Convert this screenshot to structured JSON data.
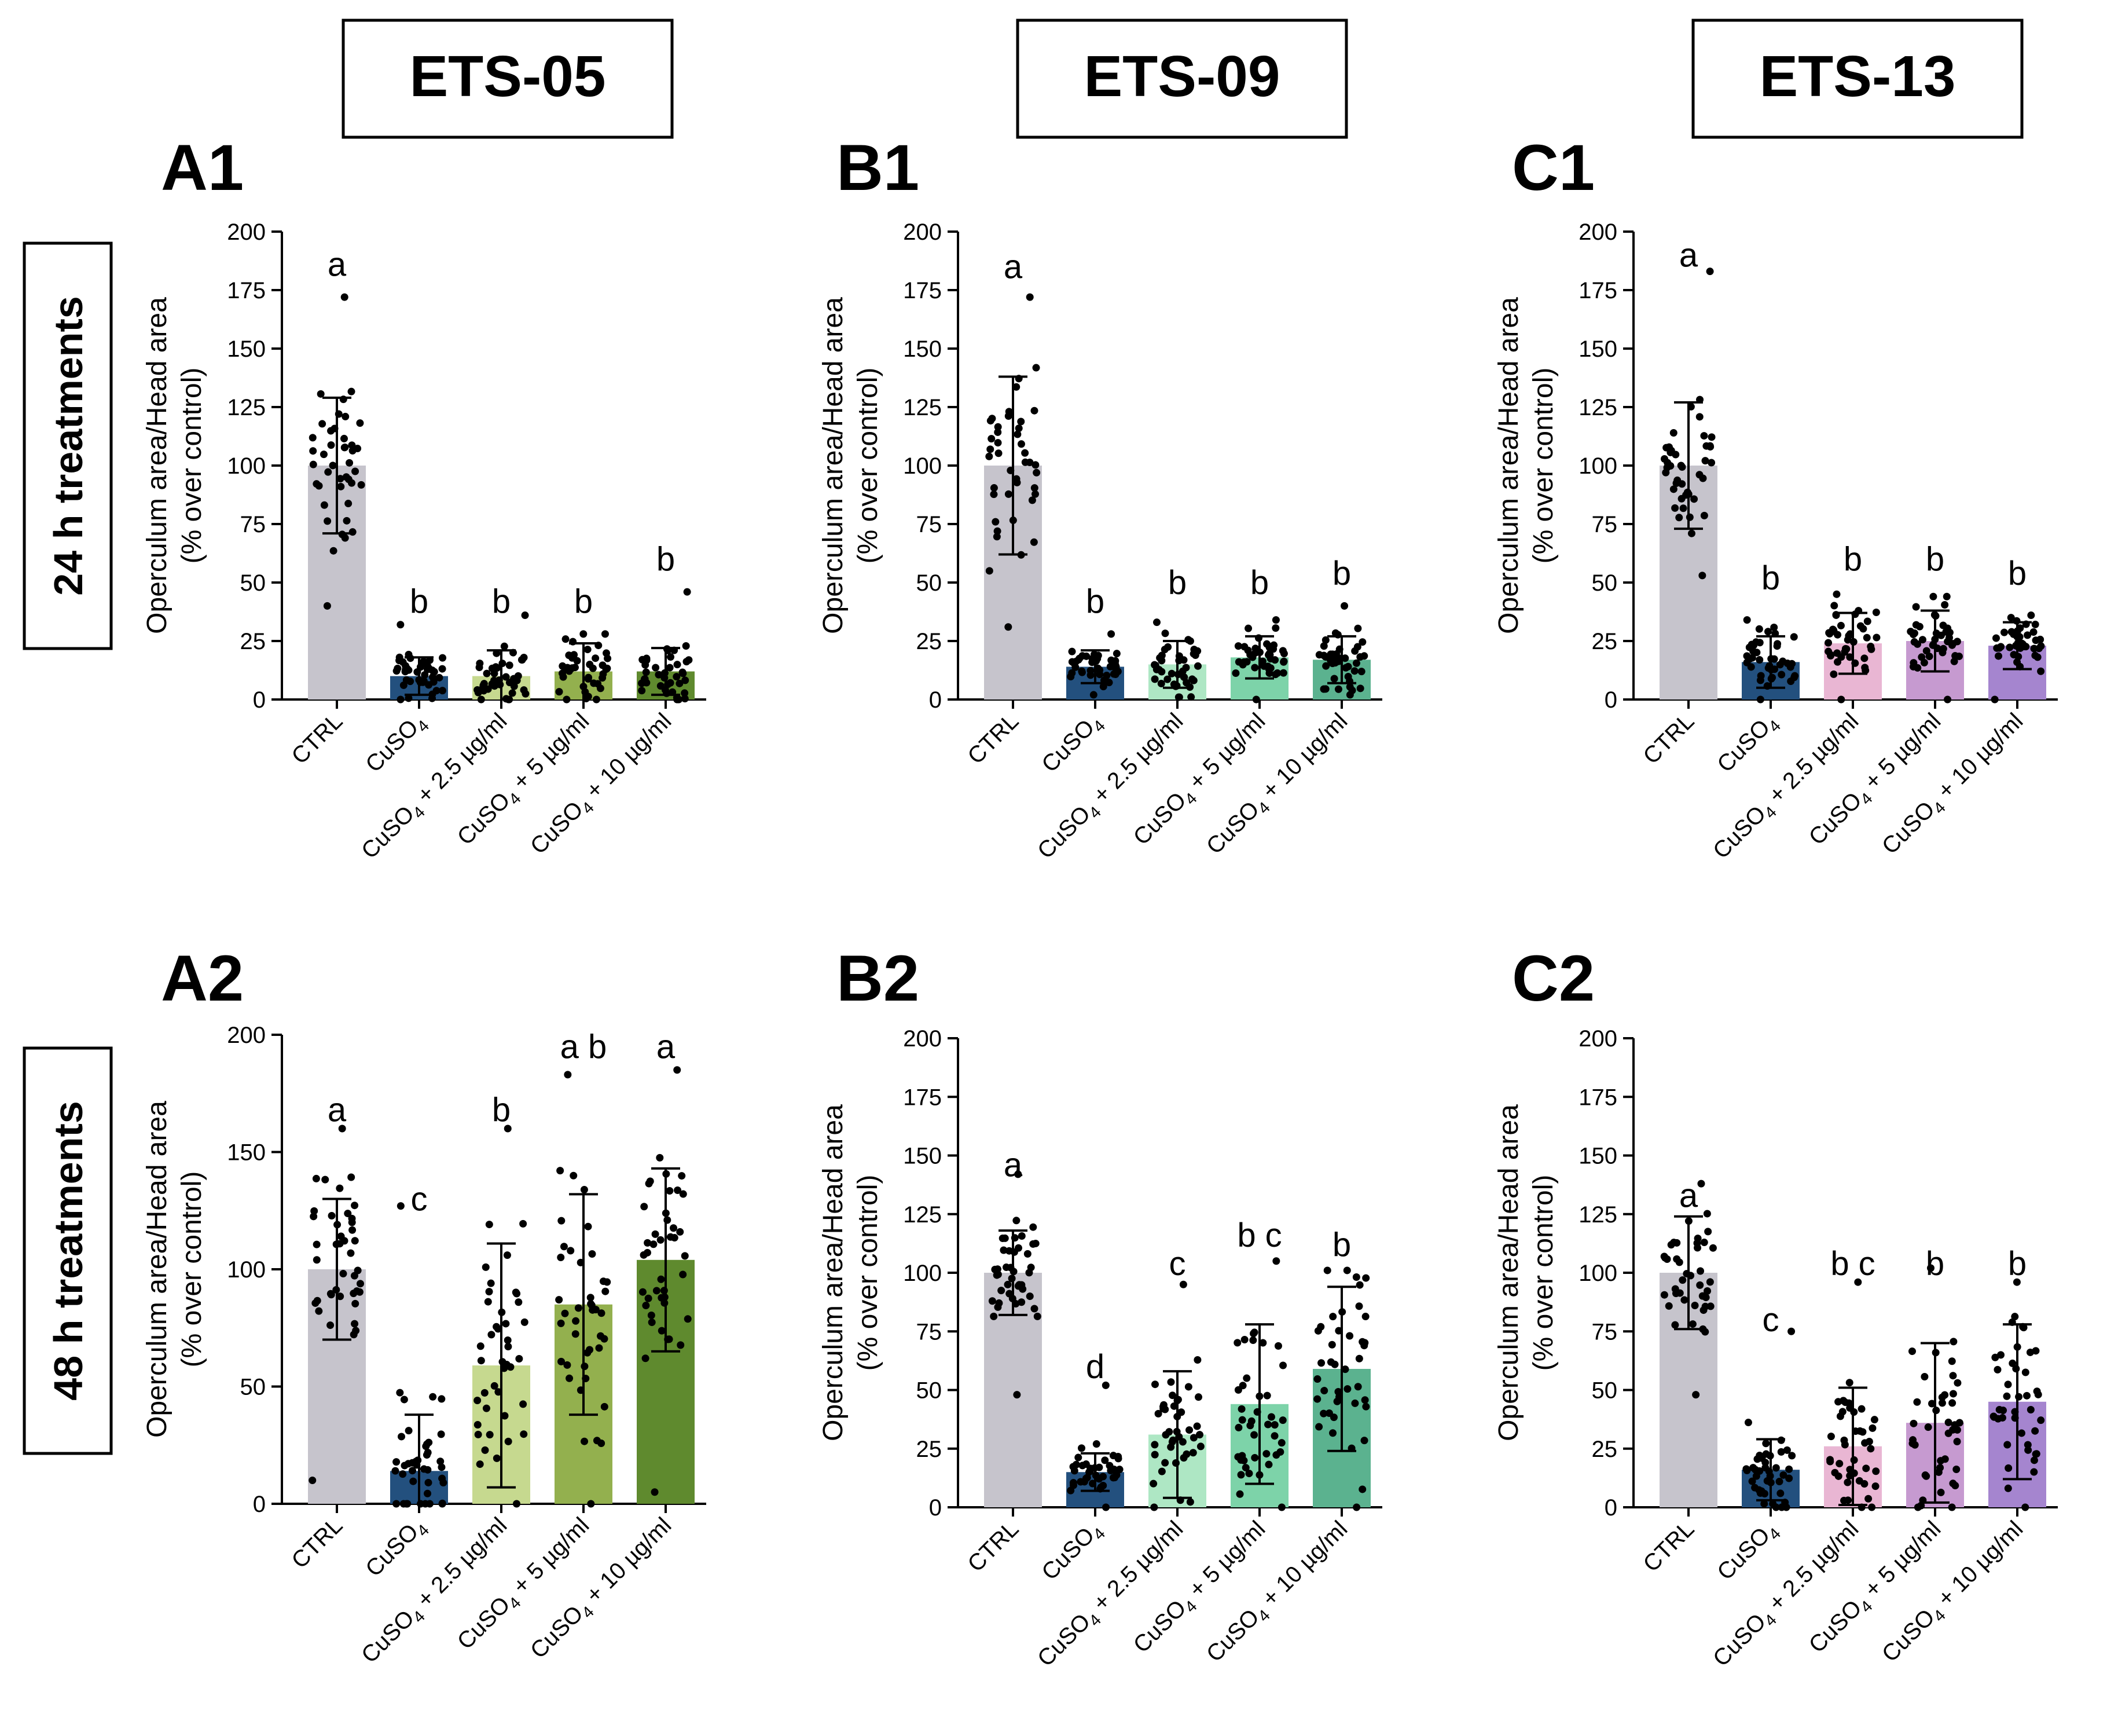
{
  "column_headers": [
    "ETS-05",
    "ETS-09",
    "ETS-13"
  ],
  "row_labels": [
    "24 h treatments",
    "48 h treatments"
  ],
  "axis": {
    "ylabel_line1": "Operculum area/Head area",
    "ylabel_line2": "(% over control)"
  },
  "colors": {
    "ctrl": "#c6c4cc",
    "cuso4": "#23507e",
    "ets05": [
      "#c6d98f",
      "#93b04e",
      "#5f8a2e"
    ],
    "ets09": [
      "#aee7c4",
      "#7dd3a9",
      "#5bb28f"
    ],
    "ets13": [
      "#e9b6d3",
      "#c69ad0",
      "#a585cf"
    ],
    "text": "#000000"
  },
  "chart_data": [
    {
      "type": "bar",
      "panel": "A1",
      "column": 0,
      "row": 0,
      "ylim": [
        0,
        200
      ],
      "yticks": [
        0,
        25,
        50,
        75,
        100,
        125,
        150,
        175,
        200
      ],
      "categories": [
        "CTRL",
        "CuSO4",
        "CuSO4 + 2.5 µg/ml",
        "CuSO4 + 5 µg/ml",
        "CuSO4 + 10 µg/ml"
      ],
      "values": [
        100,
        10,
        10,
        12,
        12
      ],
      "sd": [
        29,
        8,
        11,
        12,
        10
      ],
      "letters": [
        "a",
        "b",
        "b",
        "b",
        "b"
      ],
      "letter_y": [
        186,
        42,
        42,
        42,
        60
      ],
      "point_ranges": [
        [
          40,
          172
        ],
        [
          0,
          32
        ],
        [
          0,
          36
        ],
        [
          0,
          28
        ],
        [
          0,
          46
        ]
      ]
    },
    {
      "type": "bar",
      "panel": "B1",
      "column": 1,
      "row": 0,
      "ylim": [
        0,
        200
      ],
      "yticks": [
        0,
        25,
        50,
        75,
        100,
        125,
        150,
        175,
        200
      ],
      "categories": [
        "CTRL",
        "CuSO4",
        "CuSO4 + 2.5 µg/ml",
        "CuSO4 + 5 µg/ml",
        "CuSO4 + 10 µg/ml"
      ],
      "values": [
        100,
        14,
        15,
        18,
        17
      ],
      "sd": [
        38,
        7,
        10,
        9,
        10
      ],
      "letters": [
        "a",
        "b",
        "b",
        "b",
        "b"
      ],
      "letter_y": [
        185,
        42,
        50,
        50,
        54
      ],
      "point_ranges": [
        [
          31,
          172
        ],
        [
          2,
          28
        ],
        [
          1,
          33
        ],
        [
          0,
          34
        ],
        [
          2,
          40
        ]
      ]
    },
    {
      "type": "bar",
      "panel": "C1",
      "column": 2,
      "row": 0,
      "ylim": [
        0,
        200
      ],
      "yticks": [
        0,
        25,
        50,
        75,
        100,
        125,
        150,
        175,
        200
      ],
      "categories": [
        "CTRL",
        "CuSO4",
        "CuSO4 + 2.5 µg/ml",
        "CuSO4 + 5 µg/ml",
        "CuSO4 + 10 µg/ml"
      ],
      "values": [
        100,
        16,
        24,
        25,
        23
      ],
      "sd": [
        27,
        11,
        13,
        13,
        10
      ],
      "letters": [
        "a",
        "b",
        "b",
        "b",
        "b"
      ],
      "letter_y": [
        190,
        52,
        60,
        60,
        54
      ],
      "point_ranges": [
        [
          53,
          183
        ],
        [
          0,
          34
        ],
        [
          0,
          45
        ],
        [
          0,
          44
        ],
        [
          0,
          36
        ]
      ]
    },
    {
      "type": "bar",
      "panel": "A2",
      "column": 0,
      "row": 1,
      "ylim": [
        0,
        200
      ],
      "yticks": [
        0,
        50,
        100,
        150,
        200
      ],
      "categories": [
        "CTRL",
        "CuSO4",
        "CuSO4 + 2.5 µg/ml",
        "CuSO4 + 5 µg/ml",
        "CuSO4 + 10 µg/ml"
      ],
      "values": [
        100,
        14,
        59,
        85,
        104
      ],
      "sd": [
        30,
        24,
        52,
        47,
        39
      ],
      "letters": [
        "a",
        "c",
        "b",
        "a b",
        "a"
      ],
      "letter_y": [
        168,
        130,
        168,
        195,
        195
      ],
      "point_ranges": [
        [
          10,
          160
        ],
        [
          0,
          127
        ],
        [
          0,
          160
        ],
        [
          0,
          183
        ],
        [
          5,
          185
        ]
      ]
    },
    {
      "type": "bar",
      "panel": "B2",
      "column": 1,
      "row": 1,
      "ylim": [
        0,
        200
      ],
      "yticks": [
        0,
        25,
        50,
        75,
        100,
        125,
        150,
        175,
        200
      ],
      "categories": [
        "CTRL",
        "CuSO4",
        "CuSO4 + 2.5 µg/ml",
        "CuSO4 + 5 µg/ml",
        "CuSO4 + 10 µg/ml"
      ],
      "values": [
        100,
        15,
        31,
        44,
        59
      ],
      "sd": [
        18,
        8,
        27,
        34,
        35
      ],
      "letters": [
        "a",
        "d",
        "c",
        "b c",
        "b"
      ],
      "letter_y": [
        146,
        60,
        104,
        116,
        112
      ],
      "point_ranges": [
        [
          48,
          142
        ],
        [
          0,
          52
        ],
        [
          0,
          95
        ],
        [
          0,
          105
        ],
        [
          0,
          101
        ]
      ]
    },
    {
      "type": "bar",
      "panel": "C2",
      "column": 2,
      "row": 1,
      "ylim": [
        0,
        200
      ],
      "yticks": [
        0,
        25,
        50,
        75,
        100,
        125,
        150,
        175,
        200
      ],
      "categories": [
        "CTRL",
        "CuSO4",
        "CuSO4 + 2.5 µg/ml",
        "CuSO4 + 5 µg/ml",
        "CuSO4 + 10 µg/ml"
      ],
      "values": [
        100,
        16,
        26,
        36,
        45
      ],
      "sd": [
        24,
        13,
        25,
        34,
        33
      ],
      "letters": [
        "a",
        "c",
        "b c",
        "b",
        "b"
      ],
      "letter_y": [
        133,
        80,
        104,
        104,
        104
      ],
      "point_ranges": [
        [
          48,
          138
        ],
        [
          0,
          75
        ],
        [
          0,
          96
        ],
        [
          0,
          102
        ],
        [
          0,
          96
        ]
      ]
    }
  ]
}
